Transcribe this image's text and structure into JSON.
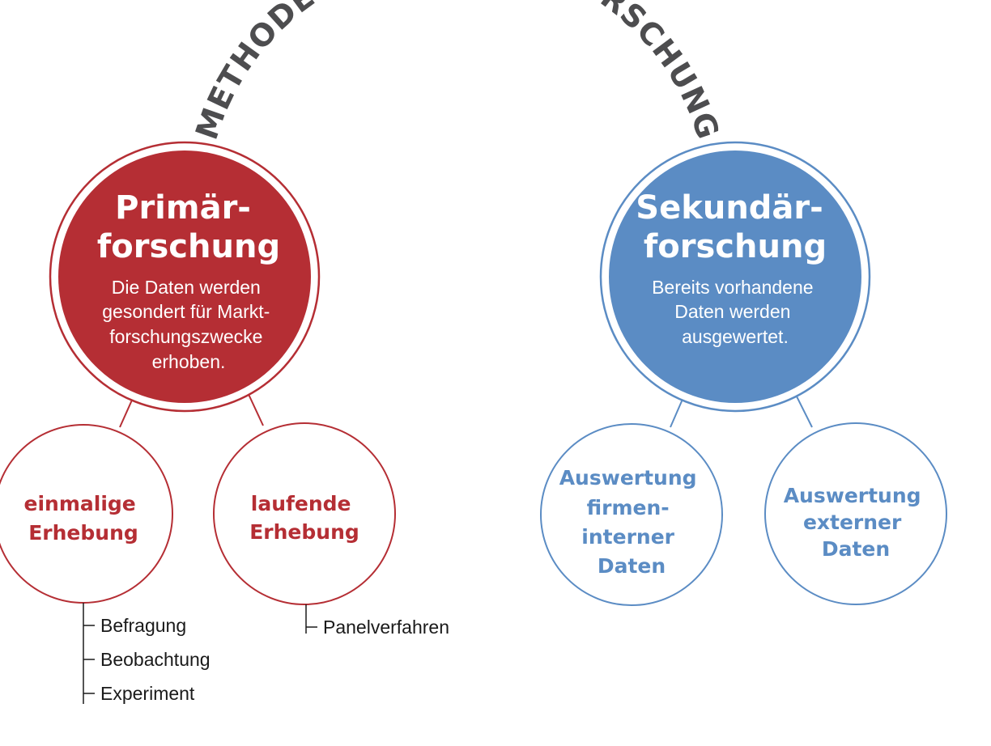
{
  "title": "METHODEN DER MARKTFORSCHUNG",
  "colors": {
    "primary": "#b52e34",
    "secondary": "#5b8cc4",
    "title_gray": "#4d4d4f",
    "text_dark": "#1a1a1a"
  },
  "primary": {
    "title": [
      "Primär-",
      "forschung"
    ],
    "description": [
      "Die Daten werden",
      "gesondert für Markt-",
      "forschungszwecke",
      "erhoben."
    ],
    "children": [
      {
        "label": [
          "einmalige",
          "Erhebung"
        ],
        "items": [
          "Befragung",
          "Beobachtung",
          "Experiment"
        ]
      },
      {
        "label": [
          "laufende",
          "Erhebung"
        ],
        "items": [
          "Panelverfahren"
        ]
      }
    ]
  },
  "secondary": {
    "title": [
      "Sekundär-",
      "forschung"
    ],
    "description": [
      "Bereits vorhandene",
      "Daten werden",
      "ausgewertet."
    ],
    "children": [
      {
        "label": [
          "Auswertung",
          "firmen-",
          "interner",
          "Daten"
        ]
      },
      {
        "label": [
          "Auswertung",
          "externer",
          "Daten"
        ]
      }
    ]
  }
}
